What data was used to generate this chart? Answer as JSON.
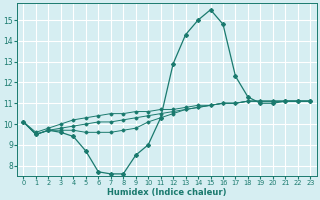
{
  "xlabel": "Humidex (Indice chaleur)",
  "ylabel": "",
  "x_values": [
    0,
    1,
    2,
    3,
    4,
    5,
    6,
    7,
    8,
    9,
    10,
    11,
    12,
    13,
    14,
    15,
    16,
    17,
    18,
    19,
    20,
    21,
    22,
    23
  ],
  "main_line": [
    10.1,
    9.5,
    9.7,
    9.6,
    9.4,
    8.7,
    7.7,
    7.6,
    7.6,
    8.5,
    9.0,
    10.3,
    12.9,
    14.3,
    15.0,
    15.5,
    14.8,
    12.3,
    11.3,
    11.0,
    11.0,
    11.1,
    11.1,
    11.1
  ],
  "line2": [
    10.1,
    9.5,
    9.7,
    9.7,
    9.7,
    9.6,
    9.6,
    9.6,
    9.7,
    9.8,
    10.1,
    10.3,
    10.5,
    10.7,
    10.8,
    10.9,
    11.0,
    11.0,
    11.1,
    11.1,
    11.1,
    11.1,
    11.1,
    11.1
  ],
  "line3": [
    10.1,
    9.5,
    9.7,
    9.8,
    9.9,
    10.0,
    10.1,
    10.1,
    10.2,
    10.3,
    10.4,
    10.5,
    10.6,
    10.7,
    10.8,
    10.9,
    11.0,
    11.0,
    11.1,
    11.1,
    11.1,
    11.1,
    11.1,
    11.1
  ],
  "line4": [
    10.1,
    9.6,
    9.8,
    10.0,
    10.2,
    10.3,
    10.4,
    10.5,
    10.5,
    10.6,
    10.6,
    10.7,
    10.7,
    10.8,
    10.9,
    10.9,
    11.0,
    11.0,
    11.1,
    11.1,
    11.1,
    11.1,
    11.1,
    11.1
  ],
  "line_color": "#1a7a6e",
  "bg_color": "#d6eef2",
  "grid_color": "#ffffff",
  "xlim": [
    -0.5,
    23.5
  ],
  "ylim": [
    7.5,
    15.8
  ],
  "yticks": [
    8,
    9,
    10,
    11,
    12,
    13,
    14,
    15
  ],
  "xticks": [
    0,
    1,
    2,
    3,
    4,
    5,
    6,
    7,
    8,
    9,
    10,
    11,
    12,
    13,
    14,
    15,
    16,
    17,
    18,
    19,
    20,
    21,
    22,
    23
  ]
}
